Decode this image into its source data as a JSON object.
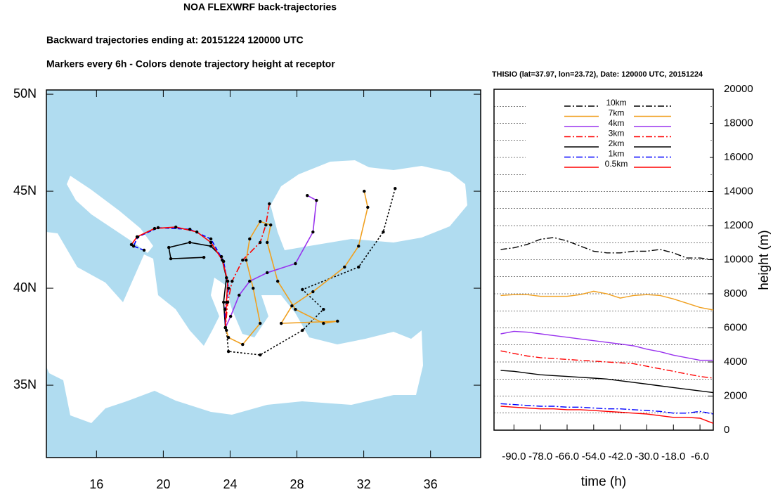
{
  "title": "NOA FLEXWRF back-trajectories",
  "subtitle": "Backward trajectories ending at: 20151224  120000 UTC",
  "note": "Markers every 6h - Colors denote trajectory height at receptor",
  "chart_data": [
    {
      "type": "map",
      "xlim": [
        13,
        39
      ],
      "ylim": [
        31.27,
        50.22
      ],
      "xticks": [
        16,
        20,
        24,
        28,
        32,
        36
      ],
      "yticks": [
        {
          "value": 35,
          "label": "35N"
        },
        {
          "value": 40,
          "label": "40N"
        },
        {
          "value": 45,
          "label": "45N"
        },
        {
          "value": 50,
          "label": "50N"
        }
      ],
      "series": [
        {
          "color": "#000000",
          "dash": "dot",
          "lon": [
            33.88,
            33.17,
            31.69,
            28.33,
            29.59,
            28.33,
            25.8,
            23.9,
            23.78,
            23.72
          ],
          "lat": [
            45.14,
            42.9,
            41.09,
            39.93,
            38.91,
            37.83,
            36.56,
            36.74,
            37.83,
            37.97
          ]
        },
        {
          "color": "#f0a020",
          "dash": "solid",
          "lon": [
            32.03,
            32.24,
            31.69,
            30.85,
            28.96,
            27.7,
            27.06,
            30.43,
            29.59,
            27.91,
            26.85,
            26.22,
            26.43,
            25.8,
            25.17,
            24.96,
            25.38,
            25.8,
            24.75,
            23.9,
            23.72
          ],
          "lat": [
            45.0,
            44.17,
            42.17,
            41.09,
            39.82,
            39.09,
            38.19,
            38.3,
            38.19,
            38.91,
            40.36,
            42.36,
            43.26,
            43.44,
            42.54,
            41.45,
            40.0,
            38.19,
            37.1,
            37.46,
            37.97
          ]
        },
        {
          "color": "#9933ee",
          "dash": "solid",
          "lon": [
            28.62,
            29.17,
            28.96,
            27.91,
            26.22,
            25.17,
            24.54,
            24.03,
            23.72
          ],
          "lat": [
            44.78,
            44.53,
            42.9,
            41.27,
            40.8,
            40.36,
            39.64,
            38.55,
            37.97
          ]
        },
        {
          "color": "#ff0000",
          "dash": "dashdot",
          "lon": [
            26.35,
            26.14,
            25.8,
            24.75,
            24.12,
            23.86,
            23.72
          ],
          "lat": [
            44.35,
            43.26,
            42.36,
            41.45,
            40.36,
            39.28,
            37.97
          ]
        },
        {
          "color": "#000000",
          "dash": "solid",
          "lon": [
            22.43,
            20.45,
            20.33,
            21.59,
            22.85,
            23.48,
            23.78,
            23.61,
            23.72
          ],
          "lat": [
            41.59,
            41.52,
            42.1,
            42.36,
            42.17,
            41.63,
            40.54,
            39.28,
            37.97
          ]
        },
        {
          "color": "#0000ff",
          "dash": "dash",
          "lon": [
            18.85,
            18.22,
            18.47,
            19.69,
            21.59,
            22.85,
            23.61,
            23.91,
            23.69,
            23.72
          ],
          "lat": [
            41.96,
            42.17,
            42.64,
            43.12,
            43.04,
            42.54,
            41.38,
            40.0,
            38.91,
            37.97
          ]
        },
        {
          "color": "#ff0000",
          "dash": "solid",
          "lon": [
            18.09,
            18.43,
            19.48,
            20.75,
            22.01,
            22.85,
            23.53,
            23.86,
            23.78,
            23.72
          ],
          "lat": [
            42.25,
            42.65,
            43.08,
            43.15,
            42.9,
            42.36,
            41.45,
            40.36,
            39.28,
            37.97
          ]
        }
      ]
    },
    {
      "type": "line",
      "title": "THISIO (lat=37.97,  lon=23.72), Date: 120000 UTC, 20151224",
      "xlabel": "time (h)",
      "ylabel": "height (m)",
      "x": [
        -96,
        -90,
        -84,
        -78,
        -72,
        -66,
        -60,
        -54,
        -48,
        -42,
        -36,
        -30,
        -24,
        -18,
        -12,
        -6,
        0
      ],
      "xlim": [
        -99,
        0
      ],
      "ylim": [
        0,
        20000
      ],
      "xticks": [
        {
          "value": -90,
          "label": "-90.0"
        },
        {
          "value": -78,
          "label": "-78.0"
        },
        {
          "value": -66,
          "label": "-66.0"
        },
        {
          "value": -54,
          "label": "-54.0"
        },
        {
          "value": -42,
          "label": "-42.0"
        },
        {
          "value": -30,
          "label": "-30.0"
        },
        {
          "value": -18,
          "label": "-18.0"
        },
        {
          "value": -6,
          "label": "-6.0"
        }
      ],
      "yticks": [
        0,
        2000,
        4000,
        6000,
        8000,
        10000,
        12000,
        14000,
        16000,
        18000,
        20000
      ],
      "ygrid": [
        1000,
        2000,
        3000,
        4000,
        5000,
        6000,
        7000,
        8000,
        9000,
        10000,
        11000,
        12000,
        13000,
        14000,
        15000,
        16000,
        17000,
        18000,
        19000
      ],
      "series": [
        {
          "name": "10km",
          "color": "#000000",
          "dash": "dashdot",
          "values": [
            10600,
            10700,
            10900,
            11200,
            11300,
            11100,
            10800,
            10500,
            10400,
            10400,
            10500,
            10500,
            10600,
            10400,
            10100,
            10100,
            10000
          ]
        },
        {
          "name": "7km",
          "color": "#f0a020",
          "dash": "solid",
          "values": [
            7900,
            7950,
            7950,
            7850,
            7850,
            7850,
            7950,
            8150,
            8000,
            7750,
            7900,
            7950,
            7900,
            7700,
            7450,
            7200,
            7050
          ]
        },
        {
          "name": "4km",
          "color": "#9933ee",
          "dash": "solid",
          "values": [
            5650,
            5800,
            5750,
            5650,
            5550,
            5450,
            5350,
            5250,
            5150,
            5050,
            4950,
            4750,
            4600,
            4400,
            4250,
            4100,
            4100
          ]
        },
        {
          "name": "3km",
          "color": "#ff0000",
          "dash": "dashdot",
          "values": [
            4650,
            4500,
            4350,
            4250,
            4200,
            4150,
            4100,
            4050,
            4000,
            3950,
            3900,
            3750,
            3600,
            3450,
            3300,
            3150,
            3050
          ]
        },
        {
          "name": "2km",
          "color": "#000000",
          "dash": "solid",
          "values": [
            3500,
            3450,
            3350,
            3250,
            3200,
            3150,
            3100,
            3050,
            3000,
            2900,
            2800,
            2700,
            2600,
            2500,
            2400,
            2300,
            2200
          ]
        },
        {
          "name": "1km",
          "color": "#0000ff",
          "dash": "dashdot",
          "values": [
            1550,
            1500,
            1450,
            1400,
            1400,
            1350,
            1350,
            1300,
            1250,
            1250,
            1200,
            1150,
            1100,
            1000,
            1000,
            1100,
            950
          ]
        },
        {
          "name": "0.5km",
          "color": "#ff0000",
          "dash": "solid",
          "values": [
            1400,
            1350,
            1300,
            1250,
            1250,
            1200,
            1200,
            1150,
            1100,
            1050,
            1000,
            950,
            850,
            750,
            750,
            700,
            400
          ]
        }
      ]
    }
  ]
}
